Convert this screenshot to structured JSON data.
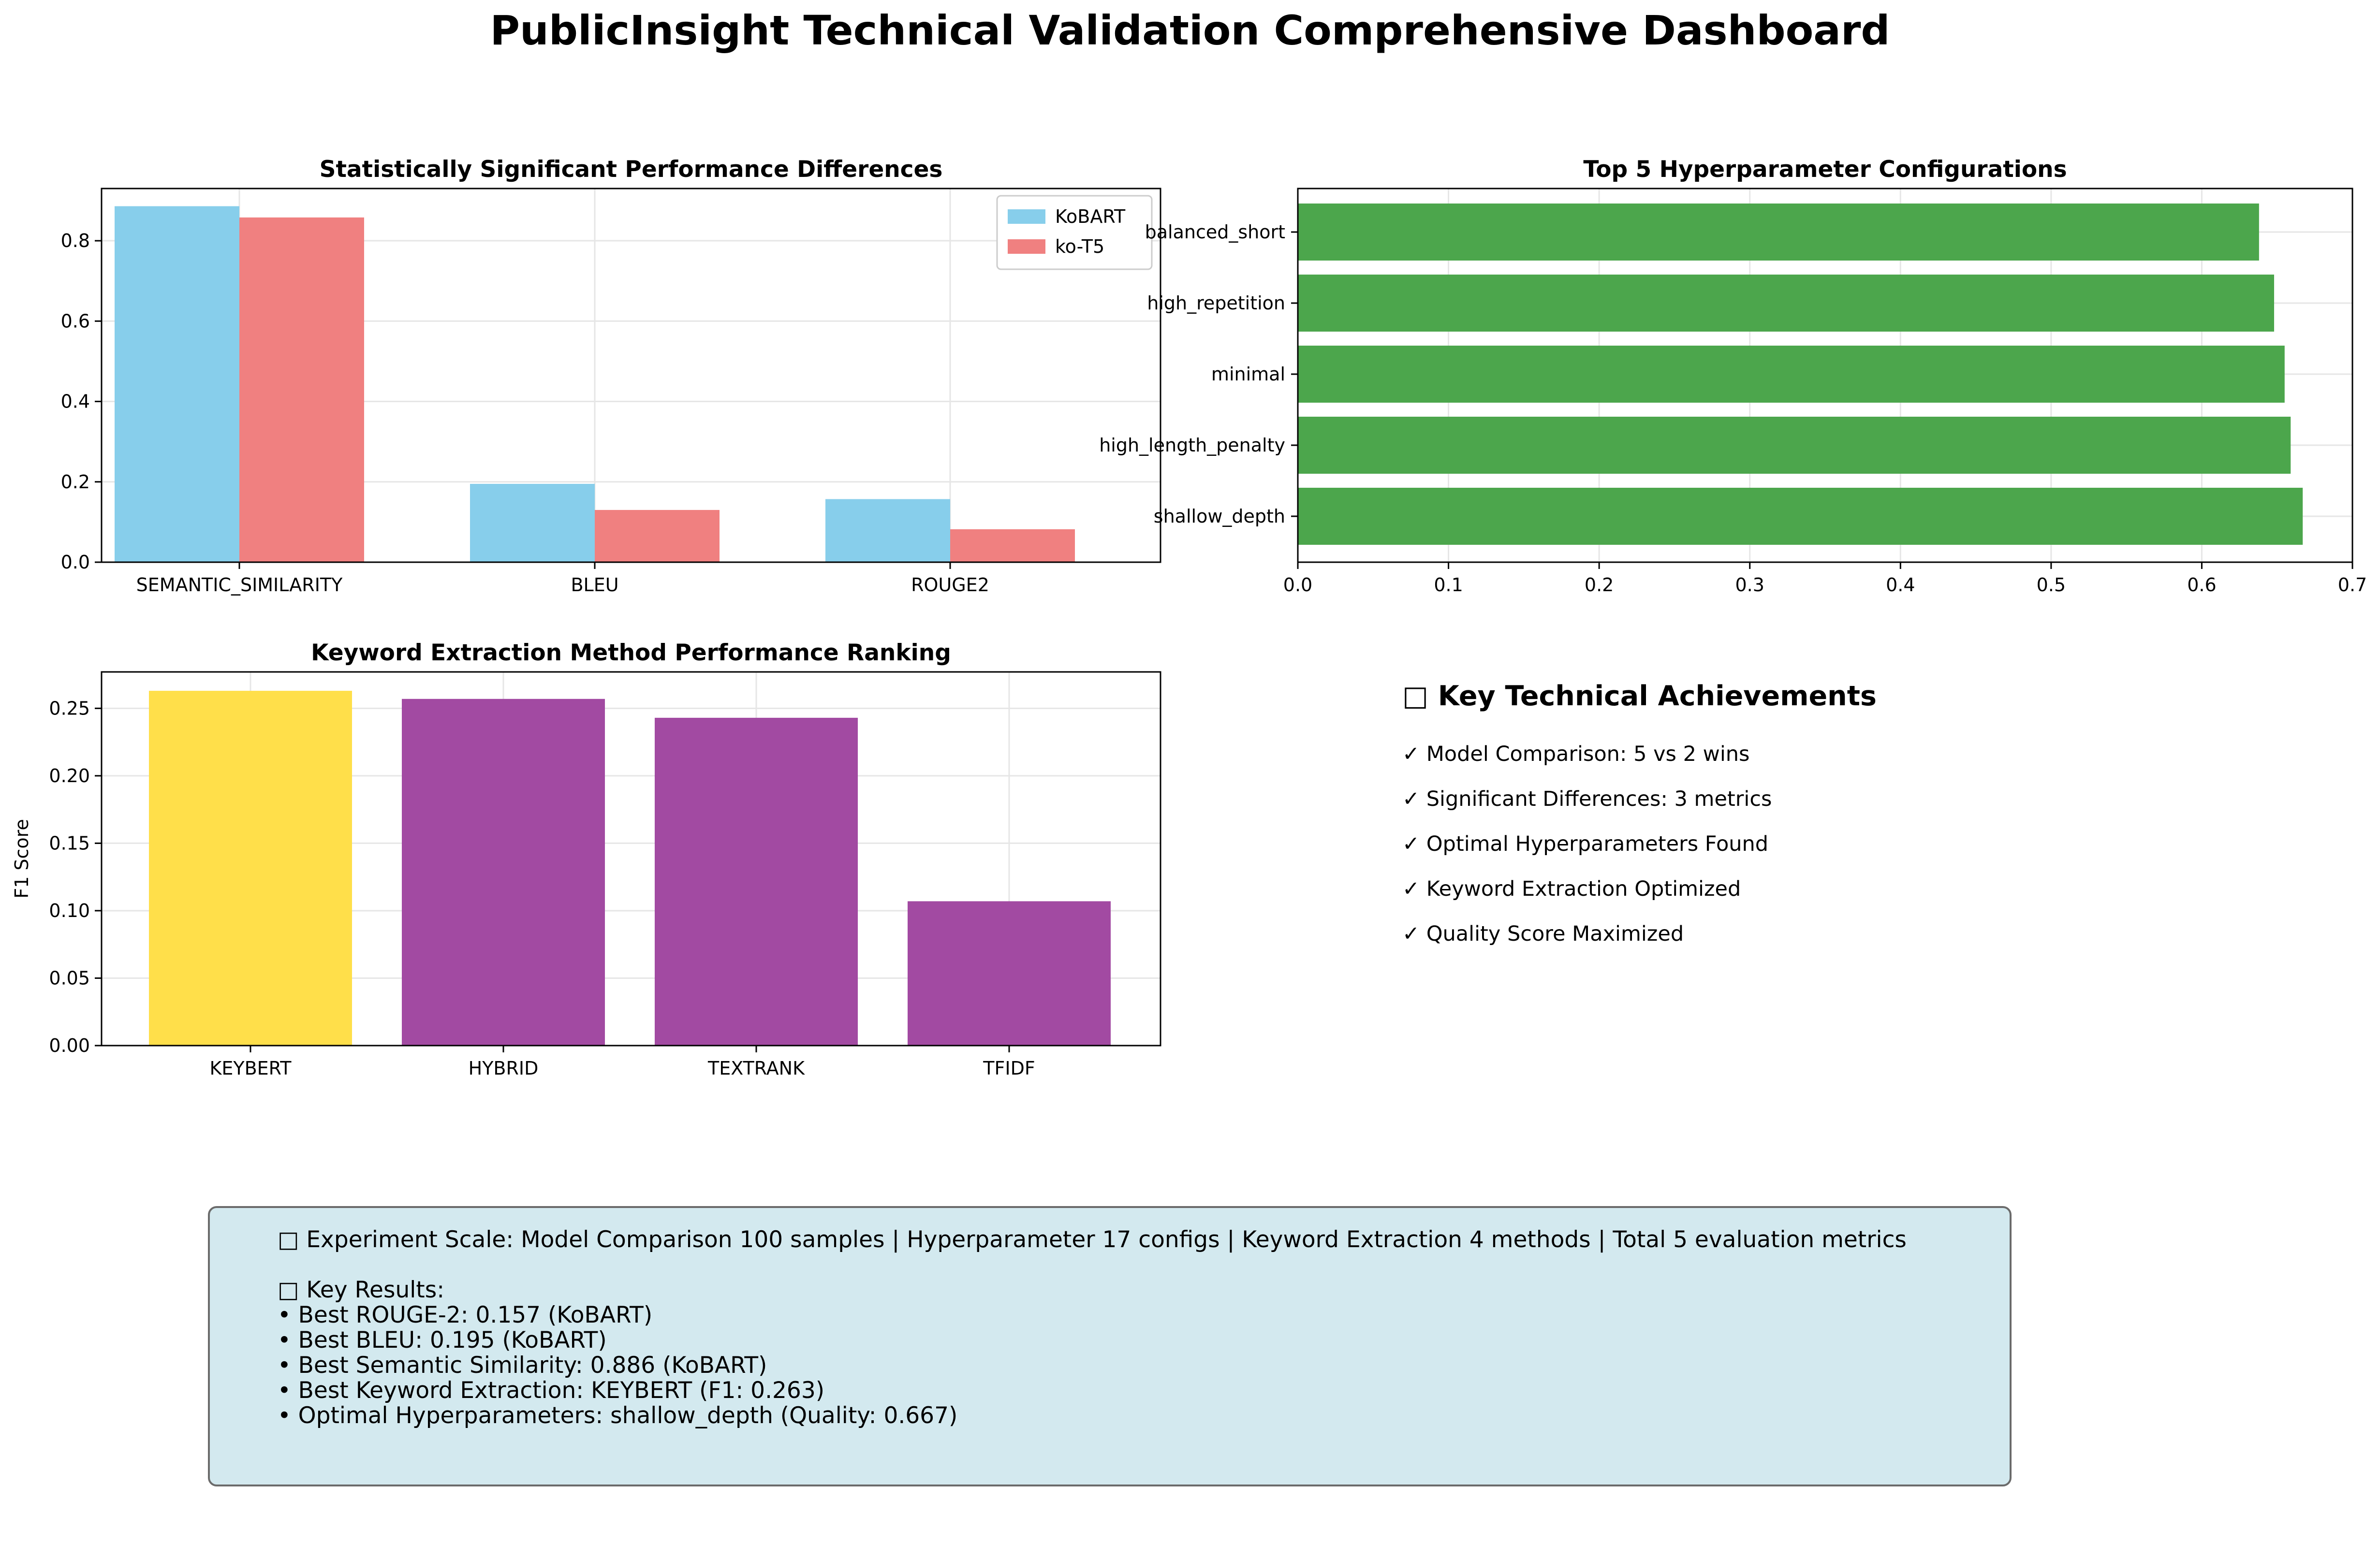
{
  "title": "PublicInsight Technical Validation Comprehensive Dashboard",
  "colors": {
    "kobart": "#87ceeb",
    "kot5": "#f08080",
    "hyper_bar": "#4ca64c",
    "best_keyword": "#ffdf4a",
    "other_keyword": "#a24aa2",
    "summary_bg": "#d3e9ef"
  },
  "chart_data": [
    {
      "type": "bar",
      "title": "Statistically Significant Performance Differences",
      "categories": [
        "SEMANTIC_SIMILARITY",
        "BLEU",
        "ROUGE2"
      ],
      "series": [
        {
          "name": "KoBART",
          "values": [
            0.886,
            0.195,
            0.157
          ]
        },
        {
          "name": "ko-T5",
          "values": [
            0.858,
            0.13,
            0.082
          ]
        }
      ],
      "ylim": [
        0,
        0.93
      ],
      "yticks": [
        0.0,
        0.2,
        0.4,
        0.6,
        0.8
      ],
      "ytick_labels": [
        "0.0",
        "0.2",
        "0.4",
        "0.6",
        "0.8"
      ],
      "legend": "top-right",
      "grid": true
    },
    {
      "type": "bar",
      "orientation": "horizontal",
      "title": "Top 5 Hyperparameter Configurations",
      "categories": [
        "shallow_depth",
        "high_length_penalty",
        "minimal",
        "high_repetition",
        "balanced_short"
      ],
      "values": [
        0.667,
        0.659,
        0.655,
        0.648,
        0.638
      ],
      "xlim": [
        0,
        0.7
      ],
      "xticks": [
        0.0,
        0.1,
        0.2,
        0.3,
        0.4,
        0.5,
        0.6,
        0.7
      ],
      "xtick_labels": [
        "0.0",
        "0.1",
        "0.2",
        "0.3",
        "0.4",
        "0.5",
        "0.6",
        "0.7"
      ],
      "grid": true
    },
    {
      "type": "bar",
      "title": "Keyword Extraction Method Performance Ranking",
      "categories": [
        "KEYBERT",
        "HYBRID",
        "TEXTRANK",
        "TFIDF"
      ],
      "values": [
        0.263,
        0.257,
        0.243,
        0.107
      ],
      "ylabel": "F1 Score",
      "ylim": [
        0,
        0.277
      ],
      "yticks": [
        0.0,
        0.05,
        0.1,
        0.15,
        0.2,
        0.25
      ],
      "ytick_labels": [
        "0.00",
        "0.05",
        "0.10",
        "0.15",
        "0.20",
        "0.25"
      ],
      "grid": true
    }
  ],
  "achievements": {
    "heading": "□ Key Technical Achievements",
    "items": [
      "✓ Model Comparison: 5 vs 2 wins",
      "✓ Significant Differences: 3 metrics",
      "✓ Optimal Hyperparameters Found",
      "✓ Keyword Extraction Optimized",
      "✓ Quality Score Maximized"
    ]
  },
  "summary": {
    "scale_line": "□ Experiment Scale: Model Comparison 100 samples | Hyperparameter 17 configs | Keyword Extraction 4 methods | Total 5 evaluation metrics",
    "results_heading": "□ Key Results:",
    "results": [
      "• Best ROUGE-2: 0.157 (KoBART)",
      "• Best BLEU: 0.195 (KoBART)",
      "• Best Semantic Similarity: 0.886 (KoBART)",
      "• Best Keyword Extraction: KEYBERT (F1: 0.263)",
      "• Optimal Hyperparameters: shallow_depth (Quality: 0.667)"
    ]
  }
}
